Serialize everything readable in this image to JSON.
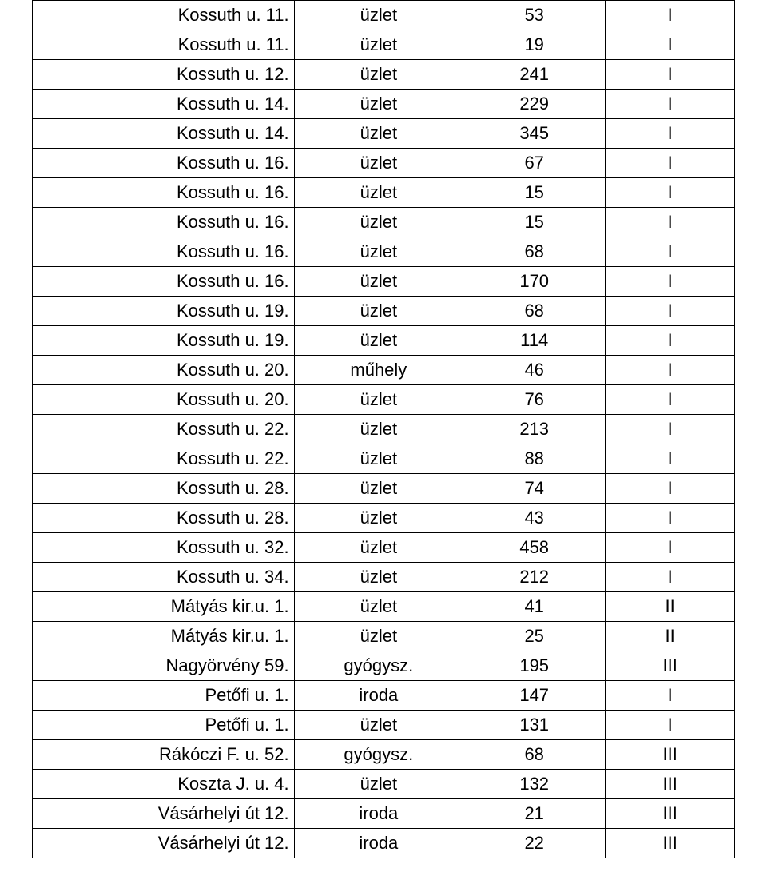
{
  "table": {
    "text_color": "#000000",
    "border_color": "#000000",
    "background_color": "#ffffff",
    "font_size_pt": 16,
    "columns": [
      {
        "key": "address",
        "align": "right",
        "width_pct": 38
      },
      {
        "key": "type",
        "align": "center",
        "width_pct": 24
      },
      {
        "key": "number",
        "align": "center",
        "width_pct": 20
      },
      {
        "key": "category",
        "align": "center",
        "width_pct": 18
      }
    ],
    "rows": [
      {
        "address": "Kossuth u. 11.",
        "type": "üzlet",
        "number": "53",
        "category": "I"
      },
      {
        "address": "Kossuth u. 11.",
        "type": "üzlet",
        "number": "19",
        "category": "I"
      },
      {
        "address": "Kossuth u. 12.",
        "type": "üzlet",
        "number": "241",
        "category": "I"
      },
      {
        "address": "Kossuth u. 14.",
        "type": "üzlet",
        "number": "229",
        "category": "I"
      },
      {
        "address": "Kossuth u. 14.",
        "type": "üzlet",
        "number": "345",
        "category": "I"
      },
      {
        "address": "Kossuth u. 16.",
        "type": "üzlet",
        "number": "67",
        "category": "I"
      },
      {
        "address": "Kossuth u. 16.",
        "type": "üzlet",
        "number": "15",
        "category": "I"
      },
      {
        "address": "Kossuth u. 16.",
        "type": "üzlet",
        "number": "15",
        "category": "I"
      },
      {
        "address": "Kossuth u. 16.",
        "type": "üzlet",
        "number": "68",
        "category": "I"
      },
      {
        "address": "Kossuth u. 16.",
        "type": "üzlet",
        "number": "170",
        "category": "I"
      },
      {
        "address": "Kossuth u. 19.",
        "type": "üzlet",
        "number": "68",
        "category": "I"
      },
      {
        "address": "Kossuth u. 19.",
        "type": "üzlet",
        "number": "114",
        "category": "I"
      },
      {
        "address": "Kossuth u. 20.",
        "type": "műhely",
        "number": "46",
        "category": "I"
      },
      {
        "address": "Kossuth u. 20.",
        "type": "üzlet",
        "number": "76",
        "category": "I"
      },
      {
        "address": "Kossuth u. 22.",
        "type": "üzlet",
        "number": "213",
        "category": "I"
      },
      {
        "address": "Kossuth u. 22.",
        "type": "üzlet",
        "number": "88",
        "category": "I"
      },
      {
        "address": "Kossuth u. 28.",
        "type": "üzlet",
        "number": "74",
        "category": "I"
      },
      {
        "address": "Kossuth u. 28.",
        "type": "üzlet",
        "number": "43",
        "category": "I"
      },
      {
        "address": "Kossuth u. 32.",
        "type": "üzlet",
        "number": "458",
        "category": "I"
      },
      {
        "address": "Kossuth u. 34.",
        "type": "üzlet",
        "number": "212",
        "category": "I"
      },
      {
        "address": "Mátyás kir.u. 1.",
        "type": "üzlet",
        "number": "41",
        "category": "II"
      },
      {
        "address": "Mátyás kir.u. 1.",
        "type": "üzlet",
        "number": "25",
        "category": "II"
      },
      {
        "address": "Nagyörvény 59.",
        "type": "gyógysz.",
        "number": "195",
        "category": "III"
      },
      {
        "address": "Petőfi u. 1.",
        "type": "iroda",
        "number": "147",
        "category": "I"
      },
      {
        "address": "Petőfi u. 1.",
        "type": "üzlet",
        "number": "131",
        "category": "I"
      },
      {
        "address": "Rákóczi F. u. 52.",
        "type": "gyógysz.",
        "number": "68",
        "category": "III"
      },
      {
        "address": "Koszta J. u. 4.",
        "type": "üzlet",
        "number": "132",
        "category": "III"
      },
      {
        "address": "Vásárhelyi út 12.",
        "type": "iroda",
        "number": "21",
        "category": "III"
      },
      {
        "address": "Vásárhelyi út 12.",
        "type": "iroda",
        "number": "22",
        "category": "III"
      }
    ]
  }
}
